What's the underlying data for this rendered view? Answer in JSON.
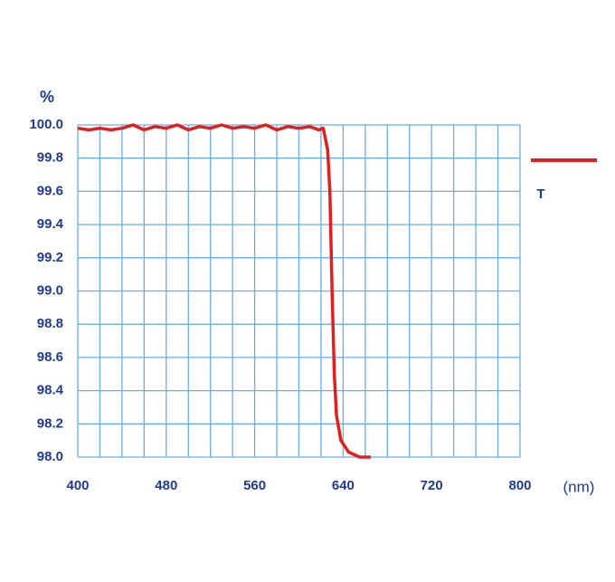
{
  "chart_data": {
    "type": "line",
    "y_label": "%",
    "x_label": "(nm)",
    "x": [
      400,
      410,
      420,
      430,
      440,
      450,
      460,
      470,
      480,
      490,
      500,
      510,
      520,
      530,
      540,
      550,
      560,
      570,
      580,
      590,
      600,
      610,
      618,
      622,
      626,
      628,
      630,
      632,
      634,
      638,
      645,
      655,
      665
    ],
    "series": [
      {
        "name": "T",
        "color": "#e02020",
        "values": [
          99.98,
          99.97,
          99.98,
          99.97,
          99.98,
          100.0,
          99.97,
          99.99,
          99.98,
          100.0,
          99.97,
          99.99,
          99.98,
          100.0,
          99.98,
          99.99,
          99.98,
          100.0,
          99.97,
          99.99,
          99.98,
          99.99,
          99.97,
          99.98,
          99.85,
          99.6,
          99.0,
          98.5,
          98.25,
          98.1,
          98.03,
          98.0,
          98.0
        ]
      }
    ],
    "xlim": [
      400,
      800
    ],
    "ylim": [
      98.0,
      100.0
    ],
    "xticks": [
      400,
      480,
      560,
      640,
      720,
      800
    ],
    "yticks": [
      {
        "value": 100.0,
        "label": "100.0"
      },
      99.8,
      99.6,
      99.4,
      99.2,
      {
        "value": 99.0,
        "label": "99.0"
      },
      98.8,
      98.6,
      98.4,
      98.2,
      {
        "value": 98.0,
        "label": "98.0"
      }
    ],
    "grid": true,
    "legend": "right"
  }
}
